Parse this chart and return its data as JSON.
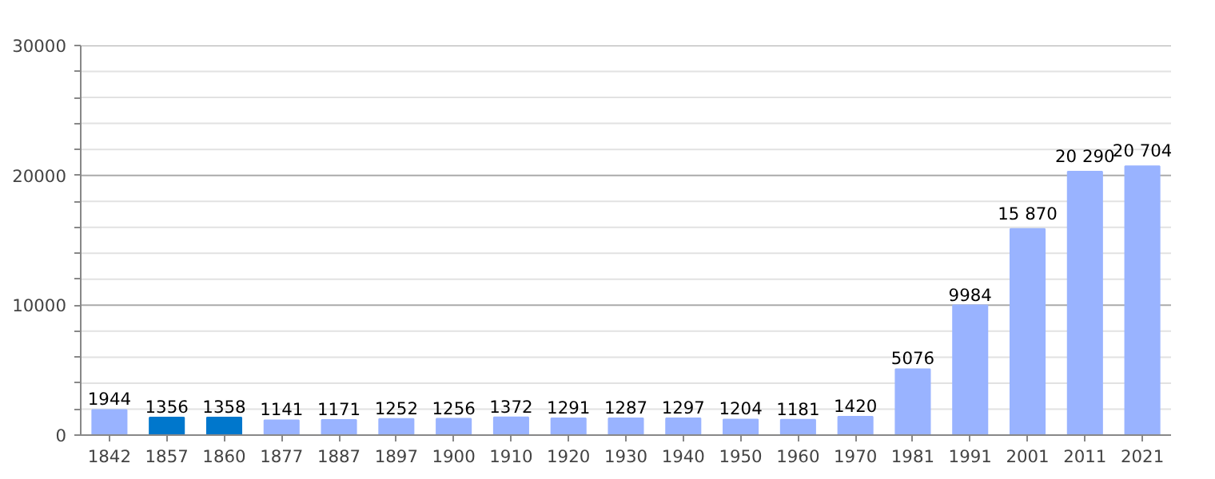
{
  "chart_data": {
    "type": "bar",
    "categories": [
      "1842",
      "1857",
      "1860",
      "1877",
      "1887",
      "1897",
      "1900",
      "1910",
      "1920",
      "1930",
      "1940",
      "1950",
      "1960",
      "1970",
      "1981",
      "1991",
      "2001",
      "2011",
      "2021"
    ],
    "values": [
      1944,
      1356,
      1358,
      1141,
      1171,
      1252,
      1256,
      1372,
      1291,
      1287,
      1297,
      1204,
      1181,
      1420,
      5076,
      9984,
      15870,
      20290,
      20704
    ],
    "colors": [
      "#99b3ff",
      "#0077cc",
      "#0077cc",
      "#99b3ff",
      "#99b3ff",
      "#99b3ff",
      "#99b3ff",
      "#99b3ff",
      "#99b3ff",
      "#99b3ff",
      "#99b3ff",
      "#99b3ff",
      "#99b3ff",
      "#99b3ff",
      "#99b3ff",
      "#99b3ff",
      "#99b3ff",
      "#99b3ff",
      "#99b3ff"
    ],
    "value_labels": [
      "1944",
      "1356",
      "1358",
      "1141",
      "1171",
      "1252",
      "1256",
      "1372",
      "1291",
      "1287",
      "1297",
      "1204",
      "1181",
      "1420",
      "5076",
      "9984",
      "15 870",
      "20 290",
      "20 704"
    ],
    "ylim": [
      0,
      30000
    ],
    "yticks": [
      0,
      {
        "value": 2000,
        "label": null
      },
      {
        "value": 4000,
        "label": null
      },
      {
        "value": 6000,
        "label": null
      },
      {
        "value": 8000,
        "label": null
      },
      10000,
      {
        "value": 12000,
        "label": null
      },
      {
        "value": 14000,
        "label": null
      },
      {
        "value": 16000,
        "label": null
      },
      {
        "value": 18000,
        "label": null
      },
      20000,
      {
        "value": 22000,
        "label": null
      },
      {
        "value": 24000,
        "label": null
      },
      {
        "value": 26000,
        "label": null
      },
      {
        "value": 28000,
        "label": null
      },
      30000
    ],
    "grid": "y"
  }
}
